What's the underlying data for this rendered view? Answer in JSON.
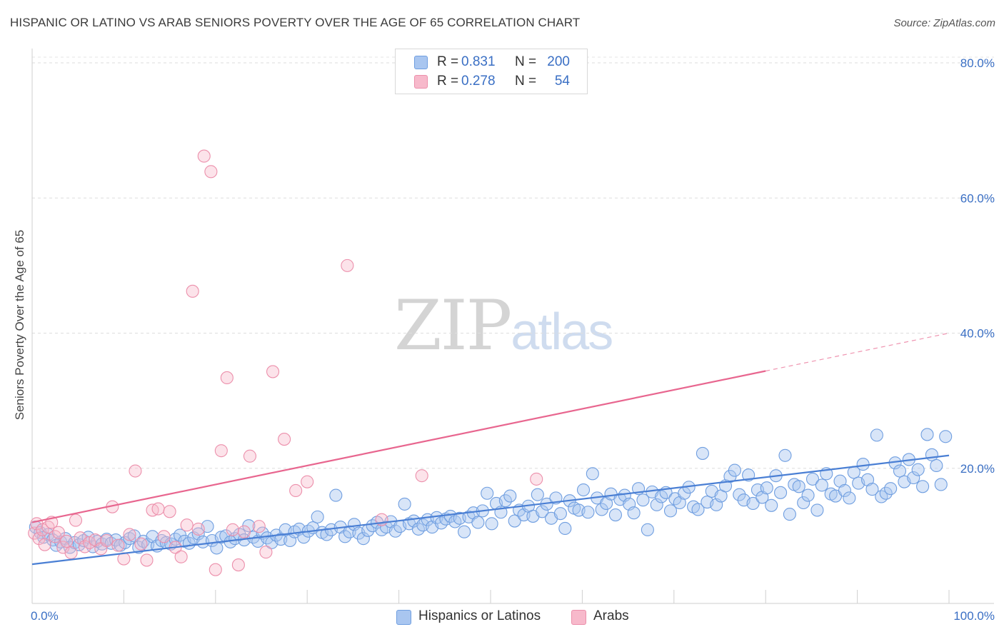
{
  "title": "HISPANIC OR LATINO VS ARAB SENIORS POVERTY OVER THE AGE OF 65 CORRELATION CHART",
  "source": "Source: ZipAtlas.com",
  "watermark": {
    "zip": "ZIP",
    "atlas": "atlas"
  },
  "legend": {
    "rows": [
      {
        "r_label": "R =",
        "r_value": "0.831",
        "n_label": "N =",
        "n_value": "200",
        "color": "#a9c6f0"
      },
      {
        "r_label": "R =",
        "r_value": "0.278",
        "n_label": "N =",
        "n_value": "54",
        "color": "#f7b9cb"
      }
    ]
  },
  "bottom_legend": [
    {
      "label": "Hispanics or Latinos",
      "color": "#a9c6f0"
    },
    {
      "label": "Arabs",
      "color": "#f7b9cb"
    }
  ],
  "chart_data": {
    "type": "scatter",
    "title": "HISPANIC OR LATINO VS ARAB SENIORS POVERTY OVER THE AGE OF 65 CORRELATION CHART",
    "xlabel": "",
    "ylabel": "Seniors Poverty Over the Age of 65",
    "xlim": [
      0,
      100
    ],
    "ylim": [
      0,
      80
    ],
    "x_tick_labels": [
      "0.0%",
      "100.0%"
    ],
    "y_tick_labels": [
      "20.0%",
      "40.0%",
      "60.0%",
      "80.0%"
    ],
    "grid": "horizontal dashed",
    "legend_position": "top-center",
    "colors": {
      "blue": "#4a7fd4",
      "blue_fill": "#a9c6f0",
      "pink": "#e8668f",
      "pink_fill": "#f7b9cb",
      "tick": "#3a6fc4"
    },
    "series": [
      {
        "name": "Hispanics or Latinos",
        "trend": {
          "x": [
            0,
            100
          ],
          "y": [
            5.8,
            21.9
          ],
          "dashed_from": null
        },
        "points": [
          [
            0.3,
            11.3
          ],
          [
            0.7,
            10.5
          ],
          [
            1.0,
            9.8
          ],
          [
            1.4,
            10.2
          ],
          [
            1.8,
            9.4
          ],
          [
            2.1,
            8.6
          ],
          [
            2.5,
            9.1
          ],
          [
            2.9,
            9.6
          ],
          [
            3.3,
            8.3
          ],
          [
            3.7,
            9.0
          ],
          [
            4.1,
            8.7
          ],
          [
            4.5,
            9.3
          ],
          [
            4.9,
            9.8
          ],
          [
            5.3,
            8.4
          ],
          [
            5.7,
            9.2
          ],
          [
            6.1,
            8.8
          ],
          [
            6.5,
            9.5
          ],
          [
            6.9,
            8.9
          ],
          [
            7.3,
            9.4
          ],
          [
            7.7,
            8.6
          ],
          [
            8.1,
            9.0
          ],
          [
            8.5,
            9.6
          ],
          [
            8.9,
            10.0
          ],
          [
            9.3,
            8.3
          ],
          [
            9.7,
            9.2
          ],
          [
            10.1,
            8.7
          ],
          [
            10.5,
            9.9
          ],
          [
            10.9,
            8.5
          ],
          [
            11.3,
            9.3
          ],
          [
            11.7,
            9.0
          ],
          [
            12.1,
            8.8
          ],
          [
            12.5,
            9.5
          ],
          [
            12.9,
            10.1
          ],
          [
            13.3,
            9.2
          ],
          [
            13.7,
            8.9
          ],
          [
            14.1,
            9.7
          ],
          [
            14.5,
            10.3
          ],
          [
            14.9,
            9.1
          ],
          [
            15.3,
            11.4
          ],
          [
            15.7,
            9.3
          ],
          [
            16.1,
            8.2
          ],
          [
            16.5,
            9.8
          ],
          [
            16.9,
            10.0
          ],
          [
            17.3,
            9.1
          ],
          [
            17.7,
            9.6
          ],
          [
            18.1,
            10.2
          ],
          [
            18.5,
            9.4
          ],
          [
            18.9,
            11.5
          ],
          [
            19.3,
            9.8
          ],
          [
            19.7,
            9.2
          ],
          [
            20.1,
            10.4
          ],
          [
            20.5,
            9.7
          ],
          [
            20.9,
            9.0
          ],
          [
            21.3,
            10.1
          ],
          [
            21.7,
            9.5
          ],
          [
            22.1,
            10.9
          ],
          [
            22.5,
            9.3
          ],
          [
            22.9,
            10.6
          ],
          [
            23.3,
            11.0
          ],
          [
            23.7,
            9.8
          ],
          [
            24.1,
            10.7
          ],
          [
            24.5,
            11.2
          ],
          [
            24.9,
            12.8
          ],
          [
            25.3,
            10.5
          ],
          [
            25.7,
            10.2
          ],
          [
            26.1,
            10.9
          ],
          [
            26.5,
            16.0
          ],
          [
            26.9,
            11.3
          ],
          [
            27.3,
            9.9
          ],
          [
            27.7,
            10.6
          ],
          [
            28.1,
            11.7
          ],
          [
            28.5,
            10.4
          ],
          [
            28.9,
            9.6
          ],
          [
            29.3,
            10.8
          ],
          [
            29.7,
            11.5
          ],
          [
            30.1,
            12.0
          ],
          [
            30.5,
            10.9
          ],
          [
            30.9,
            11.3
          ],
          [
            31.3,
            12.1
          ],
          [
            31.7,
            10.7
          ],
          [
            32.1,
            11.4
          ],
          [
            32.5,
            14.7
          ],
          [
            32.9,
            11.8
          ],
          [
            33.3,
            12.2
          ],
          [
            33.7,
            11.0
          ],
          [
            34.1,
            11.6
          ],
          [
            34.5,
            12.4
          ],
          [
            34.9,
            11.3
          ],
          [
            35.3,
            12.7
          ],
          [
            35.7,
            11.9
          ],
          [
            36.1,
            12.5
          ],
          [
            36.5,
            12.9
          ],
          [
            36.9,
            12.1
          ],
          [
            37.3,
            12.6
          ],
          [
            37.7,
            10.6
          ],
          [
            38.1,
            12.8
          ],
          [
            38.5,
            13.4
          ],
          [
            38.9,
            12.0
          ],
          [
            39.3,
            13.7
          ],
          [
            39.7,
            16.3
          ],
          [
            40.1,
            11.8
          ],
          [
            40.5,
            14.8
          ],
          [
            40.9,
            13.5
          ],
          [
            41.3,
            15.2
          ],
          [
            41.7,
            15.9
          ],
          [
            42.1,
            12.2
          ],
          [
            42.5,
            13.8
          ],
          [
            42.9,
            13.1
          ],
          [
            43.3,
            14.4
          ],
          [
            43.7,
            12.9
          ],
          [
            44.1,
            16.1
          ],
          [
            44.5,
            13.6
          ],
          [
            44.9,
            14.7
          ],
          [
            45.3,
            12.6
          ],
          [
            45.7,
            15.6
          ],
          [
            46.1,
            13.3
          ],
          [
            46.5,
            11.1
          ],
          [
            46.9,
            15.2
          ],
          [
            47.3,
            14.1
          ],
          [
            47.7,
            13.8
          ],
          [
            48.1,
            16.8
          ],
          [
            48.5,
            13.5
          ],
          [
            48.9,
            19.2
          ],
          [
            49.3,
            15.6
          ],
          [
            49.7,
            13.9
          ],
          [
            50.1,
            14.8
          ],
          [
            50.5,
            16.2
          ],
          [
            50.9,
            13.1
          ],
          [
            51.3,
            15.4
          ],
          [
            51.7,
            16.0
          ],
          [
            52.1,
            14.7
          ],
          [
            52.5,
            13.4
          ],
          [
            52.9,
            17.0
          ],
          [
            53.3,
            15.3
          ],
          [
            53.7,
            10.9
          ],
          [
            54.1,
            16.5
          ],
          [
            54.5,
            14.6
          ],
          [
            54.9,
            15.8
          ],
          [
            55.3,
            16.4
          ],
          [
            55.7,
            13.7
          ],
          [
            56.1,
            15.5
          ],
          [
            56.5,
            14.9
          ],
          [
            56.9,
            16.3
          ],
          [
            57.3,
            17.2
          ],
          [
            57.7,
            14.3
          ],
          [
            58.1,
            13.9
          ],
          [
            58.5,
            22.2
          ],
          [
            58.9,
            15.0
          ],
          [
            59.3,
            16.6
          ],
          [
            59.7,
            14.6
          ],
          [
            60.1,
            15.9
          ],
          [
            60.5,
            17.4
          ],
          [
            60.9,
            18.8
          ],
          [
            61.3,
            19.7
          ],
          [
            61.7,
            16.1
          ],
          [
            62.1,
            15.3
          ],
          [
            62.5,
            19.0
          ],
          [
            62.9,
            14.8
          ],
          [
            63.3,
            16.8
          ],
          [
            63.7,
            15.7
          ],
          [
            64.1,
            17.1
          ],
          [
            64.5,
            14.5
          ],
          [
            64.9,
            18.9
          ],
          [
            65.3,
            16.4
          ],
          [
            65.7,
            21.9
          ],
          [
            66.1,
            13.2
          ],
          [
            66.5,
            17.6
          ],
          [
            66.9,
            17.3
          ],
          [
            67.3,
            14.9
          ],
          [
            67.7,
            16.0
          ],
          [
            68.1,
            18.4
          ],
          [
            68.5,
            13.8
          ],
          [
            68.9,
            17.5
          ],
          [
            69.3,
            19.2
          ],
          [
            69.7,
            16.2
          ],
          [
            70.1,
            15.9
          ],
          [
            70.5,
            18.1
          ],
          [
            70.9,
            16.7
          ],
          [
            71.3,
            15.6
          ],
          [
            71.7,
            19.4
          ],
          [
            72.1,
            17.8
          ],
          [
            72.5,
            20.6
          ],
          [
            72.9,
            18.3
          ],
          [
            73.3,
            16.9
          ],
          [
            73.7,
            24.9
          ],
          [
            74.1,
            15.8
          ],
          [
            74.5,
            16.3
          ],
          [
            74.9,
            17.0
          ],
          [
            75.3,
            20.8
          ],
          [
            75.7,
            19.6
          ],
          [
            76.1,
            18.0
          ],
          [
            76.5,
            21.3
          ],
          [
            76.9,
            18.6
          ],
          [
            77.3,
            19.8
          ],
          [
            77.7,
            17.3
          ],
          [
            78.1,
            25.0
          ],
          [
            78.5,
            22.0
          ],
          [
            78.9,
            20.4
          ],
          [
            79.3,
            17.6
          ],
          [
            79.7,
            24.7
          ]
        ]
      },
      {
        "name": "Arabs",
        "trend": {
          "x": [
            0,
            100
          ],
          "y": [
            12.0,
            40.0
          ],
          "dashed_from": 80
        },
        "points": [
          [
            0.2,
            10.4
          ],
          [
            0.4,
            11.8
          ],
          [
            0.6,
            9.6
          ],
          [
            0.9,
            10.9
          ],
          [
            1.1,
            8.7
          ],
          [
            1.4,
            11.3
          ],
          [
            1.7,
            12.0
          ],
          [
            2.0,
            9.9
          ],
          [
            2.3,
            10.5
          ],
          [
            2.7,
            8.3
          ],
          [
            3.0,
            9.2
          ],
          [
            3.4,
            7.5
          ],
          [
            3.8,
            12.3
          ],
          [
            4.2,
            9.7
          ],
          [
            4.6,
            8.4
          ],
          [
            5.0,
            9.0
          ],
          [
            5.5,
            9.4
          ],
          [
            6.0,
            8.1
          ],
          [
            6.5,
            9.3
          ],
          [
            7.0,
            14.3
          ],
          [
            7.5,
            8.6
          ],
          [
            8.0,
            6.6
          ],
          [
            8.5,
            10.2
          ],
          [
            9.0,
            19.6
          ],
          [
            9.5,
            8.8
          ],
          [
            10.0,
            6.4
          ],
          [
            10.5,
            13.8
          ],
          [
            11.0,
            14.0
          ],
          [
            11.5,
            9.9
          ],
          [
            12.0,
            13.6
          ],
          [
            12.5,
            8.3
          ],
          [
            13.0,
            6.9
          ],
          [
            13.5,
            11.6
          ],
          [
            14.0,
            46.2
          ],
          [
            14.5,
            11.0
          ],
          [
            15.0,
            66.2
          ],
          [
            15.6,
            63.9
          ],
          [
            16.0,
            5.0
          ],
          [
            16.5,
            22.6
          ],
          [
            17.0,
            33.4
          ],
          [
            17.5,
            10.9
          ],
          [
            18.0,
            5.7
          ],
          [
            18.5,
            10.6
          ],
          [
            19.0,
            21.8
          ],
          [
            19.8,
            11.4
          ],
          [
            20.4,
            7.6
          ],
          [
            21.0,
            34.3
          ],
          [
            22.0,
            24.3
          ],
          [
            23.0,
            16.7
          ],
          [
            24.0,
            18.0
          ],
          [
            27.5,
            50.0
          ],
          [
            30.5,
            12.4
          ],
          [
            34.0,
            18.9
          ],
          [
            44.0,
            18.4
          ]
        ]
      }
    ]
  }
}
